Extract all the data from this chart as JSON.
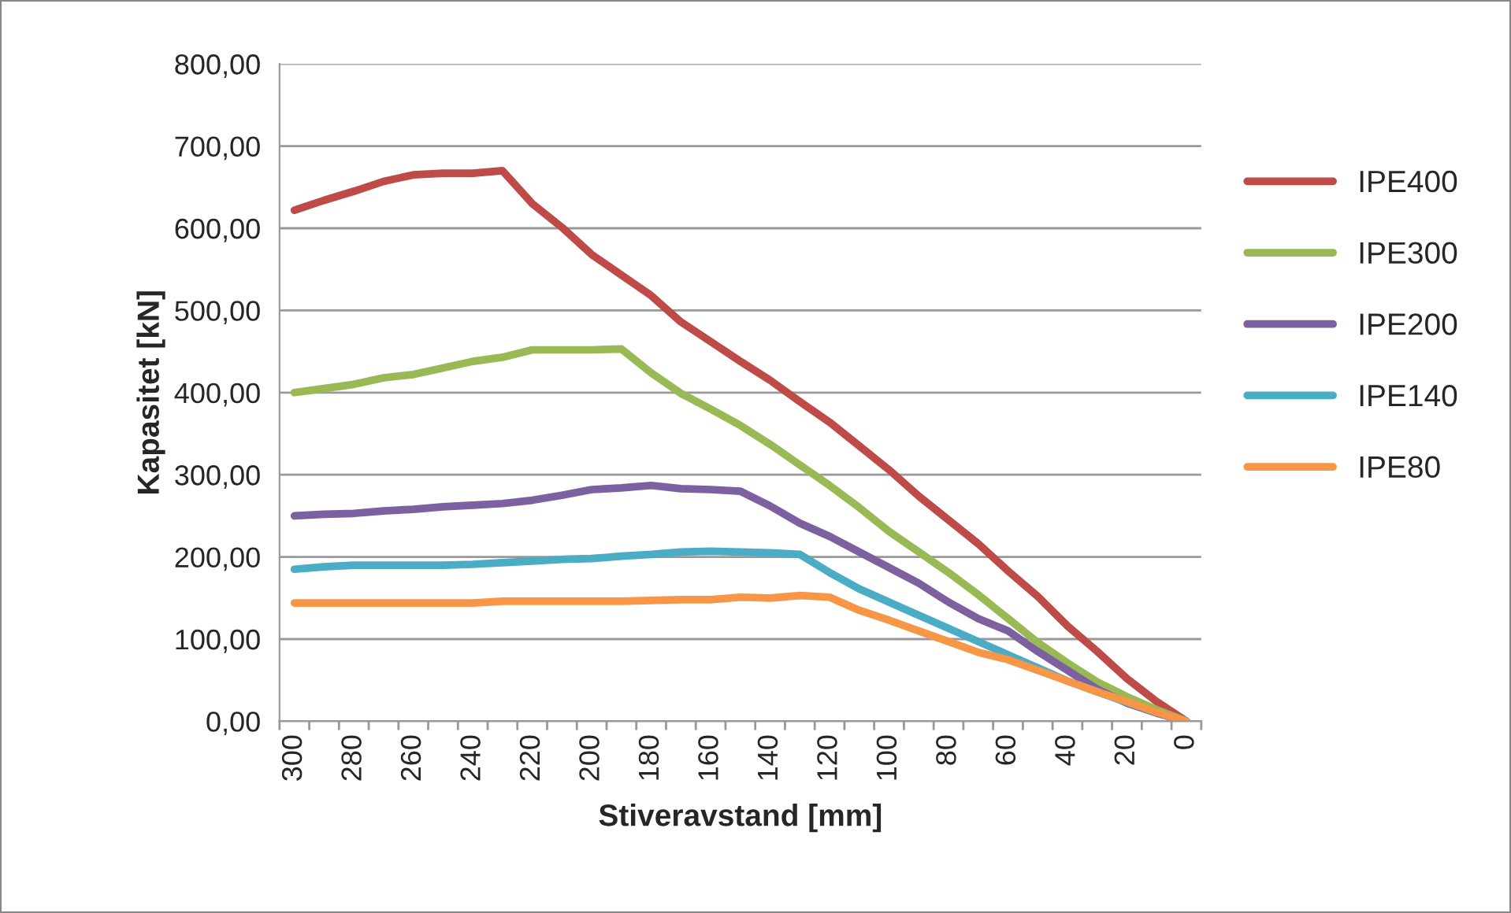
{
  "chart_data": {
    "type": "line",
    "xlabel": "Stiveravstand [mm]",
    "ylabel": "Kapasitet [kN]",
    "categories": [
      "300",
      null,
      "280",
      null,
      "260",
      null,
      "240",
      null,
      "220",
      null,
      "200",
      null,
      "180",
      null,
      "160",
      null,
      "140",
      null,
      "120",
      null,
      "100",
      null,
      "80",
      null,
      "60",
      null,
      "40",
      null,
      "20",
      null,
      "0"
    ],
    "series": [
      {
        "name": "IPE400",
        "color": "#be4b48",
        "values": [
          622,
          634,
          645,
          657,
          665,
          667,
          667,
          670,
          630,
          601,
          568,
          543,
          518,
          486,
          462,
          438,
          415,
          389,
          364,
          335,
          306,
          274,
          245,
          216,
          183,
          152,
          116,
          85,
          52,
          24,
          0
        ]
      },
      {
        "name": "IPE300",
        "color": "#98b954",
        "values": [
          400,
          405,
          410,
          418,
          422,
          430,
          438,
          443,
          452,
          452,
          452,
          453,
          424,
          399,
          380,
          360,
          337,
          312,
          287,
          260,
          231,
          206,
          181,
          154,
          125,
          96,
          71,
          48,
          30,
          14,
          0
        ]
      },
      {
        "name": "IPE200",
        "color": "#7d60a0",
        "values": [
          250,
          252,
          253,
          256,
          258,
          261,
          263,
          265,
          269,
          275,
          282,
          284,
          287,
          283,
          282,
          280,
          262,
          241,
          225,
          206,
          187,
          168,
          145,
          125,
          110,
          85,
          62,
          39,
          22,
          10,
          0
        ]
      },
      {
        "name": "IPE140",
        "color": "#4bacc6",
        "values": [
          185,
          188,
          190,
          190,
          190,
          190,
          191,
          193,
          195,
          197,
          198,
          201,
          203,
          206,
          207,
          206,
          205,
          203,
          181,
          161,
          145,
          129,
          113,
          97,
          81,
          65,
          49,
          36,
          23,
          11,
          0
        ]
      },
      {
        "name": "IPE80",
        "color": "#f79646",
        "values": [
          144,
          144,
          144,
          144,
          144,
          144,
          144,
          146,
          146,
          146,
          146,
          146,
          147,
          148,
          148,
          151,
          150,
          153,
          151,
          135,
          123,
          110,
          97,
          84,
          75,
          62,
          49,
          36,
          24,
          11,
          0
        ]
      }
    ],
    "ylim": [
      0,
      800
    ],
    "yticks": [
      {
        "value": 0,
        "label": "0,00"
      },
      {
        "value": 100,
        "label": "100,00"
      },
      {
        "value": 200,
        "label": "200,00"
      },
      {
        "value": 300,
        "label": "300,00"
      },
      {
        "value": 400,
        "label": "400,00"
      },
      {
        "value": 500,
        "label": "500,00"
      },
      {
        "value": 600,
        "label": "600,00"
      },
      {
        "value": 700,
        "label": "700,00"
      },
      {
        "value": 800,
        "label": "800,00"
      }
    ],
    "grid": "y",
    "legend": "right",
    "marker": "none",
    "line_style": "solid"
  }
}
